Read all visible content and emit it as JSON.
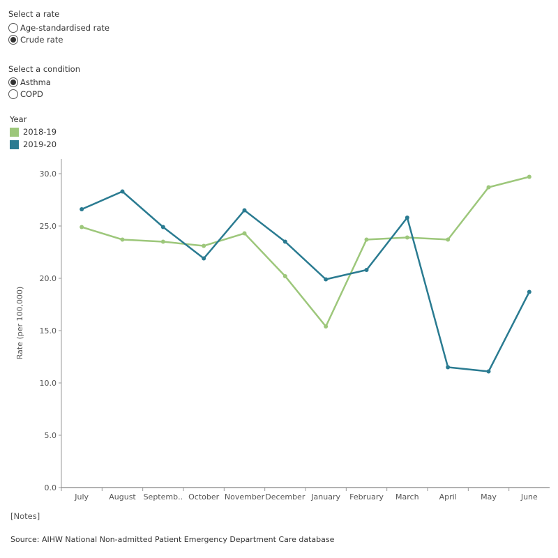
{
  "rate_filter": {
    "title": "Select a rate",
    "options": [
      {
        "label": "Age-standardised rate",
        "selected": false
      },
      {
        "label": "Crude rate",
        "selected": true
      }
    ]
  },
  "condition_filter": {
    "title": "Select a condition",
    "options": [
      {
        "label": "Asthma",
        "selected": true
      },
      {
        "label": "COPD",
        "selected": false
      }
    ]
  },
  "legend": {
    "title": "Year",
    "items": [
      {
        "label": "2018-19",
        "color": "#9dc77b"
      },
      {
        "label": "2019-20",
        "color": "#2a7b91"
      }
    ]
  },
  "notes_link": "[Notes]",
  "source": "Source: AIHW National Non-admitted Patient Emergency Department Care database",
  "chart_data": {
    "type": "line",
    "ylabel": "Rate (per 100,000)",
    "xlabel": "",
    "ylim": [
      0,
      30
    ],
    "yticks": [
      "0.0",
      "5.0",
      "10.0",
      "15.0",
      "20.0",
      "25.0",
      "30.0"
    ],
    "categories": [
      "July",
      "August",
      "Septemb..",
      "October",
      "November",
      "December",
      "January",
      "February",
      "March",
      "April",
      "May",
      "June"
    ],
    "grid": false,
    "series": [
      {
        "name": "2018-19",
        "color": "#9dc77b",
        "values": [
          24.9,
          23.7,
          23.5,
          23.1,
          24.3,
          20.2,
          15.4,
          23.7,
          23.9,
          23.7,
          28.7,
          29.7
        ]
      },
      {
        "name": "2019-20",
        "color": "#2a7b91",
        "values": [
          26.6,
          28.3,
          24.9,
          21.9,
          26.5,
          23.5,
          19.9,
          20.8,
          25.8,
          11.5,
          11.1,
          18.7
        ]
      }
    ]
  }
}
